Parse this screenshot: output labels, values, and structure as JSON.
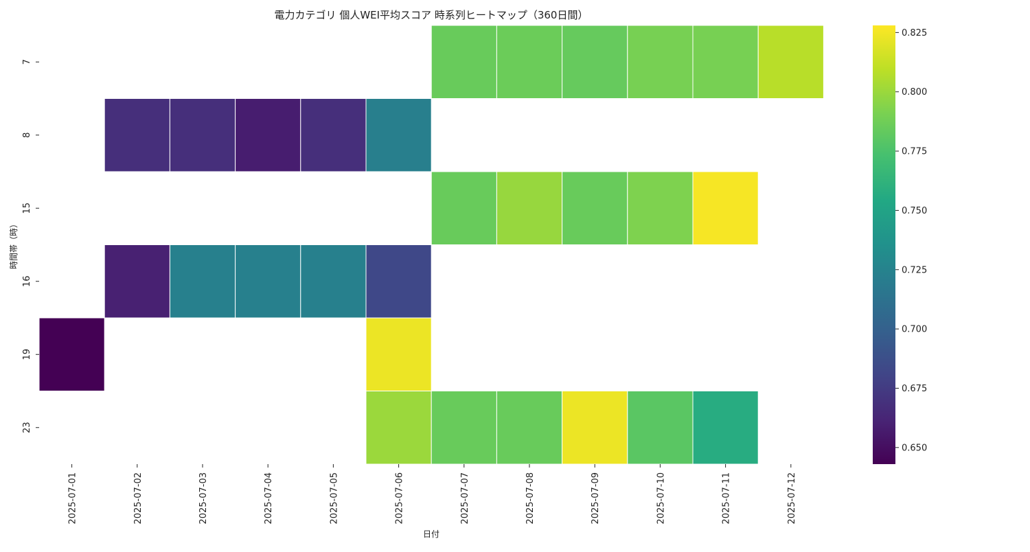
{
  "chart_data": {
    "type": "heatmap",
    "title": "電力カテゴリ 個人WEI平均スコア 時系列ヒートマップ（360日間）",
    "xlabel": "日付",
    "ylabel": "時間帯（時）",
    "colormap": "viridis",
    "x": [
      "2025-07-01",
      "2025-07-02",
      "2025-07-03",
      "2025-07-04",
      "2025-07-05",
      "2025-07-06",
      "2025-07-07",
      "2025-07-08",
      "2025-07-09",
      "2025-07-10",
      "2025-07-11",
      "2025-07-12"
    ],
    "y": [
      "7",
      "8",
      "15",
      "16",
      "19",
      "23"
    ],
    "values": [
      [
        null,
        null,
        null,
        null,
        null,
        null,
        0.785,
        0.786,
        0.784,
        0.79,
        0.79,
        0.808
      ],
      [
        null,
        0.668,
        0.668,
        0.658,
        0.668,
        0.722,
        null,
        null,
        null,
        null,
        null,
        null
      ],
      [
        null,
        null,
        null,
        null,
        null,
        null,
        0.785,
        0.799,
        0.785,
        0.792,
        0.826,
        null
      ],
      [
        null,
        0.66,
        0.723,
        0.723,
        0.723,
        0.683,
        null,
        null,
        null,
        null,
        null,
        null
      ],
      [
        0.643,
        null,
        null,
        null,
        null,
        0.823,
        null,
        null,
        null,
        null,
        null,
        null
      ],
      [
        null,
        null,
        null,
        null,
        null,
        0.8,
        0.785,
        0.785,
        0.823,
        0.78,
        0.757,
        null
      ]
    ],
    "colorbar": {
      "vmin": 0.643,
      "vmax": 0.828,
      "ticks": [
        "0.650",
        "0.675",
        "0.700",
        "0.725",
        "0.750",
        "0.775",
        "0.800",
        "0.825"
      ]
    },
    "grid": false
  }
}
